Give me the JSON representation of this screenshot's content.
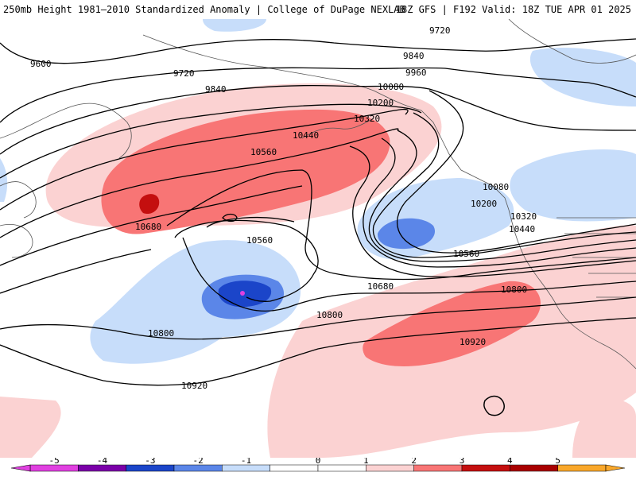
{
  "header": {
    "left_title": "250mb Height 1981–2010 Standardized Anomaly | College of DuPage NEXLAB",
    "right_title": "18Z GFS | F192 Valid: 18Z TUE APR 01 2025"
  },
  "map": {
    "contour_labels": [
      "9600",
      "9720",
      "9720",
      "9840",
      "9840",
      "9960",
      "10080",
      "10080",
      "10200",
      "10200",
      "10320",
      "10320",
      "10440",
      "10440",
      "10560",
      "10560",
      "10560",
      "10680",
      "10680",
      "10800",
      "10800",
      "10800",
      "10920",
      "10920"
    ],
    "anomaly_colors": {
      "minus5": "#e040e0",
      "minus4": "#7a00a8",
      "minus3": "#1b45c9",
      "minus2": "#5b86e8",
      "minus1": "#c7ddfa",
      "zero": "#ffffff",
      "plus1": "#fbd2d2",
      "plus2": "#f87575",
      "plus3": "#c40f0f",
      "plus4": "#a80000",
      "plus5": "#f9a72a"
    }
  },
  "colorbar": {
    "ticks": [
      "-5",
      "-4",
      "-3",
      "-2",
      "-1",
      "0",
      "1",
      "2",
      "3",
      "4",
      "5"
    ],
    "colors": [
      "#e040e0",
      "#7a00a8",
      "#1b45c9",
      "#5b86e8",
      "#c7ddfa",
      "#ffffff",
      "#ffffff",
      "#fbd2d2",
      "#f87575",
      "#c40f0f",
      "#a80000",
      "#f9a72a"
    ]
  }
}
